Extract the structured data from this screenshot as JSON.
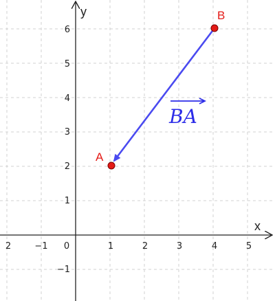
{
  "axes": {
    "x_label": "x",
    "y_label": "y",
    "x_ticks": [
      "2",
      "−1",
      "0",
      "1",
      "2",
      "3",
      "4",
      "5"
    ],
    "y_ticks": [
      "6",
      "5",
      "4",
      "3",
      "2",
      "1",
      "−1"
    ]
  },
  "points": [
    {
      "label": "A",
      "x": 1,
      "y": 2
    },
    {
      "label": "B",
      "x": 4,
      "y": 6
    }
  ],
  "vector": {
    "from": "B",
    "to": "A",
    "label": "BA"
  },
  "colors": {
    "point": "#e41b17",
    "vector": "#4a4af0",
    "vector_label": "#2b2be8",
    "grid": "#d0d0d0",
    "axis": "#222222"
  }
}
